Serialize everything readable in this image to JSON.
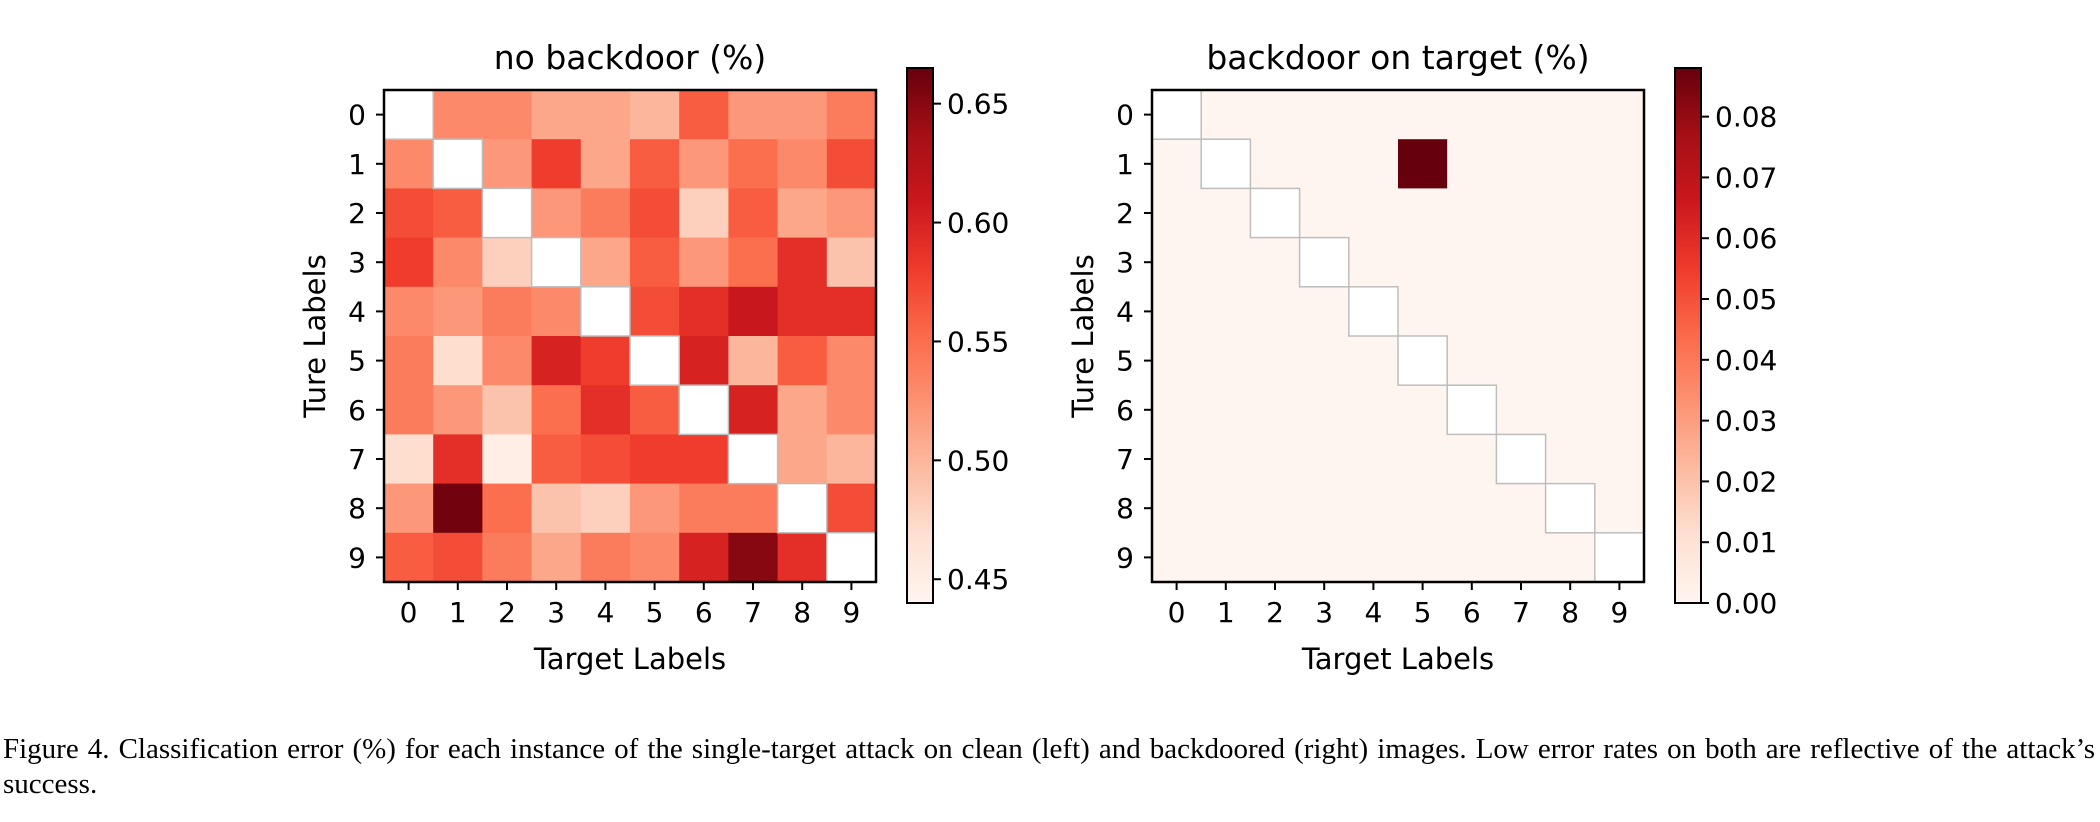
{
  "chart_data": [
    {
      "type": "heatmap",
      "title": "no backdoor (%)",
      "xlabel": "Target Labels",
      "ylabel": "Ture Labels",
      "x_categories": [
        "0",
        "1",
        "2",
        "3",
        "4",
        "5",
        "6",
        "7",
        "8",
        "9"
      ],
      "y_categories": [
        "0",
        "1",
        "2",
        "3",
        "4",
        "5",
        "6",
        "7",
        "8",
        "9"
      ],
      "colormap": "Reds",
      "vmin": 0.44,
      "vmax": 0.665,
      "colorbar_ticks": [
        "0.45",
        "0.50",
        "0.55",
        "0.60",
        "0.65"
      ],
      "diagonal_blank": true,
      "values": [
        [
          null,
          0.53,
          0.53,
          0.51,
          0.51,
          0.5,
          0.56,
          0.52,
          0.52,
          0.54
        ],
        [
          0.53,
          null,
          0.52,
          0.58,
          0.51,
          0.56,
          0.52,
          0.55,
          0.53,
          0.57
        ],
        [
          0.57,
          0.56,
          null,
          0.52,
          0.54,
          0.57,
          0.48,
          0.56,
          0.51,
          0.52
        ],
        [
          0.58,
          0.53,
          0.48,
          null,
          0.51,
          0.56,
          0.52,
          0.55,
          0.59,
          0.49
        ],
        [
          0.53,
          0.52,
          0.54,
          0.53,
          null,
          0.57,
          0.59,
          0.61,
          0.59,
          0.59
        ],
        [
          0.54,
          0.47,
          0.53,
          0.6,
          0.58,
          null,
          0.6,
          0.5,
          0.56,
          0.53
        ],
        [
          0.54,
          0.52,
          0.49,
          0.55,
          0.59,
          0.56,
          null,
          0.6,
          0.51,
          0.53
        ],
        [
          0.47,
          0.59,
          0.45,
          0.56,
          0.57,
          0.58,
          0.58,
          null,
          0.51,
          0.5
        ],
        [
          0.52,
          0.66,
          0.55,
          0.49,
          0.48,
          0.52,
          0.54,
          0.54,
          null,
          0.57
        ],
        [
          0.56,
          0.57,
          0.54,
          0.51,
          0.54,
          0.53,
          0.6,
          0.65,
          0.59,
          null
        ]
      ]
    },
    {
      "type": "heatmap",
      "title": "backdoor on target (%)",
      "xlabel": "Target Labels",
      "ylabel": "Ture Labels",
      "x_categories": [
        "0",
        "1",
        "2",
        "3",
        "4",
        "5",
        "6",
        "7",
        "8",
        "9"
      ],
      "y_categories": [
        "0",
        "1",
        "2",
        "3",
        "4",
        "5",
        "6",
        "7",
        "8",
        "9"
      ],
      "colormap": "Reds",
      "vmin": 0.0,
      "vmax": 0.088,
      "colorbar_ticks": [
        "0.00",
        "0.01",
        "0.02",
        "0.03",
        "0.04",
        "0.05",
        "0.06",
        "0.07",
        "0.08"
      ],
      "diagonal_blank": true,
      "values": [
        [
          null,
          0,
          0,
          0,
          0,
          0,
          0,
          0,
          0,
          0
        ],
        [
          0,
          null,
          0,
          0,
          0,
          0.088,
          0,
          0,
          0,
          0
        ],
        [
          0,
          0,
          null,
          0,
          0,
          0,
          0,
          0,
          0,
          0
        ],
        [
          0,
          0,
          0,
          null,
          0,
          0,
          0,
          0,
          0,
          0
        ],
        [
          0,
          0,
          0,
          0,
          null,
          0,
          0,
          0,
          0,
          0
        ],
        [
          0,
          0,
          0,
          0,
          0,
          null,
          0,
          0,
          0,
          0
        ],
        [
          0,
          0,
          0,
          0,
          0,
          0,
          null,
          0,
          0,
          0
        ],
        [
          0,
          0,
          0,
          0,
          0,
          0,
          0,
          null,
          0,
          0
        ],
        [
          0,
          0,
          0,
          0,
          0,
          0,
          0,
          0,
          null,
          0
        ],
        [
          0,
          0,
          0,
          0,
          0,
          0,
          0,
          0,
          0,
          null
        ]
      ]
    }
  ],
  "caption": "Figure 4. Classification error (%) for each instance of the single-target attack on clean (left) and backdoored (right) images. Low error rates on both are reflective of the attack’s success."
}
